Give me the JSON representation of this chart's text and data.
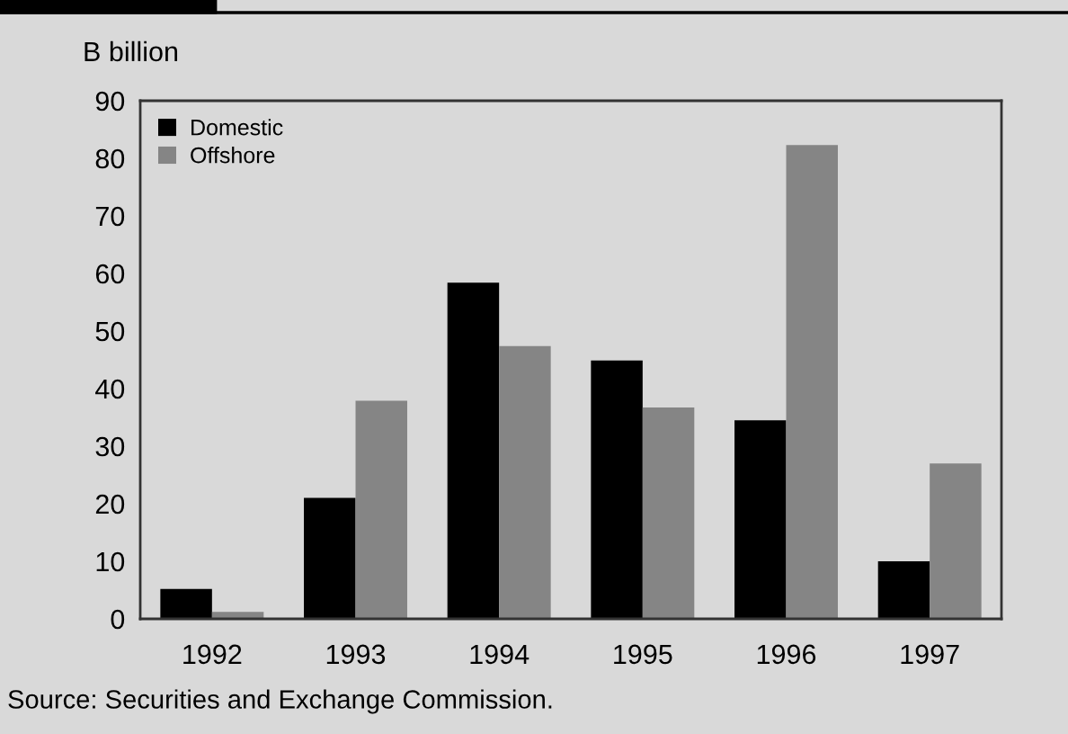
{
  "chart_data": {
    "type": "bar",
    "ylabel": "B billion",
    "categories": [
      "1992",
      "1993",
      "1994",
      "1995",
      "1996",
      "1997"
    ],
    "series": [
      {
        "name": "Domestic",
        "color": "#000000",
        "values": [
          5.2,
          21,
          58.4,
          44.9,
          34.5,
          10
        ]
      },
      {
        "name": "Offshore",
        "color": "#858585",
        "values": [
          1.2,
          37.9,
          47.4,
          36.7,
          82.3,
          27
        ]
      }
    ],
    "ylim": [
      0,
      90
    ],
    "yticks": [
      0,
      10,
      20,
      30,
      40,
      50,
      60,
      70,
      80,
      90
    ],
    "grid": false,
    "legend": "top left",
    "annotations": [
      "Source: Securities and Exchange Commission."
    ]
  }
}
